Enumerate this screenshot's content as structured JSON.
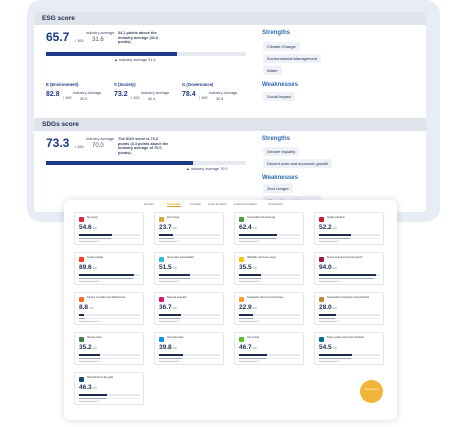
{
  "esg": {
    "title": "ESG score",
    "score": "65.7",
    "unit": "/ 100",
    "avg_label": "Industry average",
    "avg_value": "31.6",
    "note": "34.1 points above the industry average (31.6 points).",
    "bar_avg_label": "Industry average 31.6",
    "bar_fill": 0.657,
    "subs": [
      {
        "label": "E (Environment)",
        "score": "82.8",
        "unit": "/ 100",
        "avg_label": "Industry average",
        "avg": "30.0"
      },
      {
        "label": "S (Society)",
        "score": "73.2",
        "unit": "/ 100",
        "avg_label": "Industry average",
        "avg": "32.4"
      },
      {
        "label": "G (Governance)",
        "score": "78.4",
        "unit": "/ 100",
        "avg_label": "Industry average",
        "avg": "32.8"
      }
    ],
    "strengths_title": "Strengths",
    "strengths": [
      "Climate Change",
      "Environmental Management",
      "Water"
    ],
    "weaknesses_title": "Weaknesses",
    "weaknesses": [
      "Social Impact"
    ]
  },
  "sdgs": {
    "title": "SDGs score",
    "score": "73.3",
    "unit": "/ 100",
    "avg_label": "Industry average",
    "avg_value": "70.0",
    "note": "The SDG score is 73.3 points (3.3 points above the industry average of 70.0 points).",
    "bar_avg_label": "Industry average 70.0",
    "bar_fill": 0.733,
    "strengths_title": "Strengths",
    "strengths": [
      "Gender equality",
      "Decent work and economic growth"
    ],
    "weaknesses_title": "Weaknesses",
    "weaknesses": [
      "Zero hunger",
      "Affordable and clean energy"
    ]
  },
  "front": {
    "tabs": [
      "Summary",
      "Goal details",
      "Your Data",
      "Create Scenarios",
      "AI Recommendations",
      "Find Solutions"
    ],
    "active_tab": "Goal details",
    "tiles": [
      {
        "name": "No poverty",
        "score": "54.6",
        "unit": "/100",
        "avg": "Industry average 53.0",
        "fill": 0.546,
        "fill2": 0.53,
        "color": "#e5243b"
      },
      {
        "name": "Zero hunger",
        "score": "23.7",
        "unit": "/100",
        "avg": "Industry average 24.1",
        "fill": 0.237,
        "fill2": 0.241,
        "color": "#dda63a"
      },
      {
        "name": "Good health and well-being",
        "score": "62.4",
        "unit": "/100",
        "avg": "Industry average 60.2",
        "fill": 0.624,
        "fill2": 0.602,
        "color": "#4c9f38"
      },
      {
        "name": "Quality education",
        "score": "52.2",
        "unit": "/100",
        "avg": "Industry average 50.1",
        "fill": 0.522,
        "fill2": 0.501,
        "color": "#c5192d"
      },
      {
        "name": "Gender equality",
        "score": "89.6",
        "unit": "/100",
        "avg": "Industry average 88.0",
        "fill": 0.896,
        "fill2": 0.88,
        "color": "#ff3a21"
      },
      {
        "name": "Clean water and sanitation",
        "score": "51.5",
        "unit": "/100",
        "avg": "Industry average 50.2",
        "fill": 0.515,
        "fill2": 0.502,
        "color": "#26bde2"
      },
      {
        "name": "Affordable and clean energy",
        "score": "35.5",
        "unit": "/100",
        "avg": "Industry average 36.0",
        "fill": 0.355,
        "fill2": 0.36,
        "color": "#fcc30b"
      },
      {
        "name": "Decent work and economic growth",
        "score": "94.0",
        "unit": "/100",
        "avg": "Industry average 90.0",
        "fill": 0.94,
        "fill2": 0.9,
        "color": "#a21942"
      },
      {
        "name": "Industry, innovation and infrastructure",
        "score": "8.8",
        "unit": "/100",
        "avg": "Industry average 10.0",
        "fill": 0.088,
        "fill2": 0.1,
        "color": "#fd6925"
      },
      {
        "name": "Reduced inequality",
        "score": "36.7",
        "unit": "/100",
        "avg": "Industry average 35.0",
        "fill": 0.367,
        "fill2": 0.35,
        "color": "#dd1367"
      },
      {
        "name": "Sustainable cities and communities",
        "score": "22.9",
        "unit": "/100",
        "avg": "Industry average 23.0",
        "fill": 0.229,
        "fill2": 0.23,
        "color": "#fd9d24"
      },
      {
        "name": "Responsible consumption and production",
        "score": "28.0",
        "unit": "/100",
        "avg": "Industry average 27.0",
        "fill": 0.28,
        "fill2": 0.27,
        "color": "#bf8b2e"
      },
      {
        "name": "Climate action",
        "score": "35.2",
        "unit": "/100",
        "avg": "Industry average 34.0",
        "fill": 0.352,
        "fill2": 0.34,
        "color": "#3f7e44"
      },
      {
        "name": "Life below water",
        "score": "39.8",
        "unit": "/100",
        "avg": "Industry average 38.0",
        "fill": 0.398,
        "fill2": 0.38,
        "color": "#0a97d9"
      },
      {
        "name": "Life on land",
        "score": "46.7",
        "unit": "/100",
        "avg": "Industry average 45.0",
        "fill": 0.467,
        "fill2": 0.45,
        "color": "#56c02b"
      },
      {
        "name": "Peace, justice and strong institutions",
        "score": "54.5",
        "unit": "/100",
        "avg": "Industry average 53.0",
        "fill": 0.545,
        "fill2": 0.53,
        "color": "#00689d"
      },
      {
        "name": "Partnerships for the goals",
        "score": "46.3",
        "unit": "/100",
        "avg": "Industry average 45.0",
        "fill": 0.463,
        "fill2": 0.45,
        "color": "#19486a"
      }
    ],
    "fab_label": "Get a report"
  }
}
